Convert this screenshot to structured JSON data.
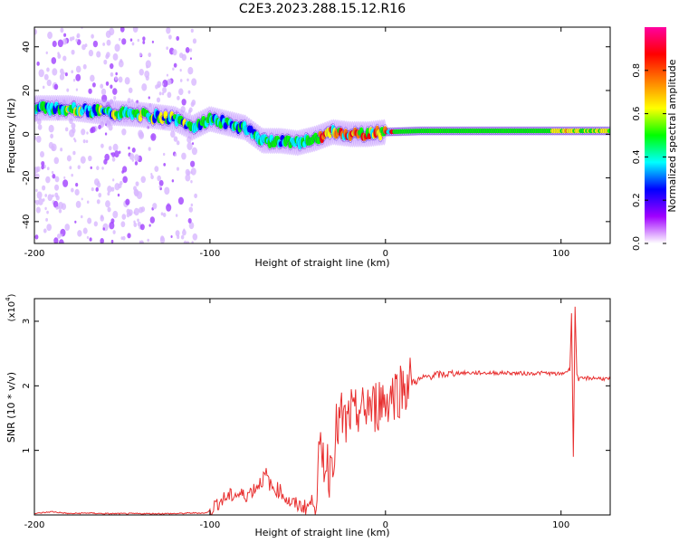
{
  "title": "C2E3.2023.288.15.12.R16",
  "chart_data": [
    {
      "type": "heatmap",
      "xlabel": "Height of straight line (km)",
      "ylabel": "Frequency (Hz)",
      "xlim": [
        -200,
        128
      ],
      "ylim": [
        -50,
        49
      ],
      "x_ticks": [
        "-200",
        "-100",
        "0",
        "100"
      ],
      "y_ticks": [
        "-40",
        "-20",
        "0",
        "20",
        "40"
      ],
      "x_tick_values": [
        -200,
        -100,
        0,
        100
      ],
      "y_tick_values": [
        -40,
        -20,
        0,
        20,
        40
      ],
      "colorbar": {
        "label": "Normalized spectral amplitude",
        "range": [
          0,
          1
        ],
        "ticks": [
          "0.0",
          "0.2",
          "0.4",
          "0.6",
          "0.8"
        ],
        "tick_values": [
          0,
          0.2,
          0.4,
          0.6,
          0.8
        ],
        "colors": [
          "#ffffff",
          "#a000ff",
          "#0000ff",
          "#00ffff",
          "#00ff00",
          "#ffff00",
          "#ff8000",
          "#ff0000",
          "#ff00a0"
        ]
      },
      "ridge": {
        "name": "",
        "points": [
          [
            -200,
            12
          ],
          [
            -180,
            12
          ],
          [
            -160,
            10
          ],
          [
            -140,
            9
          ],
          [
            -120,
            7
          ],
          [
            -110,
            3
          ],
          [
            -100,
            7
          ],
          [
            -90,
            5
          ],
          [
            -80,
            3
          ],
          [
            -70,
            -3
          ],
          [
            -60,
            -3
          ],
          [
            -50,
            -4
          ],
          [
            -40,
            -2
          ],
          [
            -30,
            1
          ],
          [
            -20,
            0
          ],
          [
            -10,
            0
          ],
          [
            0,
            1
          ],
          [
            20,
            1.5
          ],
          [
            60,
            1.5
          ],
          [
            100,
            1.5
          ],
          [
            128,
            1.5
          ]
        ]
      }
    },
    {
      "type": "line",
      "xlabel": "Height of straight line (km)",
      "ylabel": "SNR (10 * v/v)",
      "y_multiplier": "(x10",
      "y_multiplier_exp": "4",
      "y_multiplier_close": ")",
      "xlim": [
        -200,
        128
      ],
      "ylim": [
        0,
        3.35
      ],
      "x_ticks": [
        "-200",
        "-100",
        "0",
        "100"
      ],
      "y_ticks": [
        "1",
        "2",
        "3"
      ],
      "x_tick_values": [
        -200,
        -100,
        0,
        100
      ],
      "y_tick_values": [
        1,
        2,
        3
      ],
      "series": [
        {
          "name": "",
          "color": "#e83030",
          "x": [
            -200,
            -190,
            -180,
            -170,
            -160,
            -150,
            -140,
            -130,
            -120,
            -110,
            -102,
            -100,
            -95,
            -90,
            -85,
            -80,
            -75,
            -70,
            -68,
            -65,
            -60,
            -55,
            -50,
            -45,
            -40,
            -38,
            -35,
            -32,
            -30,
            -28,
            -25,
            -22,
            -20,
            -18,
            -15,
            -12,
            -10,
            -8,
            -5,
            -2,
            0,
            2,
            5,
            8,
            10,
            15,
            20,
            25,
            30,
            35,
            40,
            50,
            60,
            70,
            80,
            90,
            100,
            105,
            106,
            107,
            108,
            109,
            110,
            115,
            120,
            128
          ],
          "y": [
            0.02,
            0.05,
            0.02,
            0.03,
            0.02,
            0.02,
            0.02,
            0.02,
            0.02,
            0.03,
            0.03,
            0.08,
            0.2,
            0.28,
            0.32,
            0.3,
            0.4,
            0.55,
            0.62,
            0.42,
            0.38,
            0.2,
            0.15,
            0.12,
            0.25,
            0.8,
            0.9,
            0.7,
            1.0,
            1.3,
            1.5,
            1.35,
            1.6,
            1.4,
            1.7,
            1.5,
            1.8,
            1.6,
            1.7,
            1.8,
            1.75,
            1.85,
            1.9,
            1.95,
            2.0,
            2.05,
            2.1,
            2.15,
            2.17,
            2.18,
            2.2,
            2.2,
            2.2,
            2.2,
            2.19,
            2.2,
            2.18,
            2.25,
            3.15,
            0.9,
            3.2,
            2.2,
            2.1,
            2.12,
            2.12,
            2.1
          ]
        }
      ]
    }
  ]
}
